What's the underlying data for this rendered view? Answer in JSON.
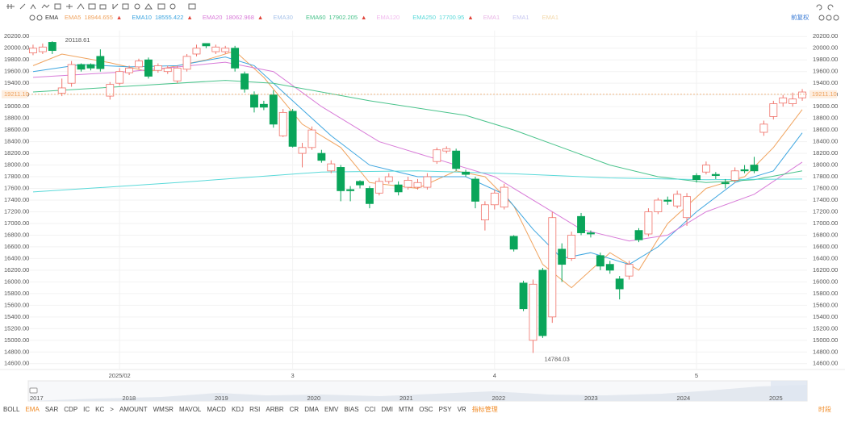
{
  "chart_data": {
    "type": "candlestick",
    "indicator": "EMA",
    "adjust_button": "前复权",
    "ylim": [
      14500,
      20300
    ],
    "yticks": [
      {
        "value": 20200,
        "label": "20200.00"
      },
      {
        "value": 20000,
        "label": "20000.00"
      },
      {
        "value": 19800,
        "label": "19800.00"
      },
      {
        "value": 19600,
        "label": "19600.00"
      },
      {
        "value": 19400,
        "label": "19400.00"
      },
      {
        "value": 19200,
        "label": "19200.00"
      },
      {
        "value": 19000,
        "label": "19000.00"
      },
      {
        "value": 18800,
        "label": "18800.00"
      },
      {
        "value": 18600,
        "label": "18600.00"
      },
      {
        "value": 18400,
        "label": "18400.00"
      },
      {
        "value": 18200,
        "label": "18200.00"
      },
      {
        "value": 18000,
        "label": "18000.00"
      },
      {
        "value": 17800,
        "label": "17800.00"
      },
      {
        "value": 17600,
        "label": "17600.00"
      },
      {
        "value": 17400,
        "label": "17400.00"
      },
      {
        "value": 17200,
        "label": "17200.00"
      },
      {
        "value": 17000,
        "label": "17000.00"
      },
      {
        "value": 16800,
        "label": "16800.00"
      },
      {
        "value": 16600,
        "label": "16600.00"
      },
      {
        "value": 16400,
        "label": "16400.00"
      },
      {
        "value": 16200,
        "label": "16200.00"
      },
      {
        "value": 16000,
        "label": "16000.00"
      },
      {
        "value": 15800,
        "label": "15800.00"
      },
      {
        "value": 15600,
        "label": "15600.00"
      },
      {
        "value": 15400,
        "label": "15400.00"
      },
      {
        "value": 15200,
        "label": "15200.00"
      },
      {
        "value": 15000,
        "label": "15000.00"
      },
      {
        "value": 14800,
        "label": "14800.00"
      },
      {
        "value": 14600,
        "label": "14600.00"
      }
    ],
    "grid": true,
    "up_color": "#f0736b",
    "down_color": "#0aa55a",
    "categories": [
      null,
      null,
      null,
      null,
      null,
      null,
      null,
      null,
      null,
      "2025/02",
      null,
      null,
      null,
      null,
      null,
      null,
      null,
      null,
      null,
      null,
      null,
      null,
      null,
      null,
      null,
      null,
      null,
      "3",
      null,
      null,
      null,
      null,
      null,
      null,
      null,
      null,
      null,
      null,
      null,
      null,
      null,
      null,
      null,
      null,
      null,
      null,
      null,
      null,
      "4",
      null,
      null,
      null,
      null,
      null,
      null,
      null,
      null,
      null,
      null,
      null,
      null,
      null,
      null,
      null,
      null,
      null,
      null,
      null,
      null,
      "5",
      null,
      null,
      null,
      null,
      null,
      null,
      null,
      null,
      null,
      null,
      null
    ],
    "open": [
      19920,
      19940,
      20100,
      19230,
      19400,
      19720,
      19720,
      19860,
      19180,
      19400,
      19580,
      19680,
      19800,
      19620,
      19600,
      19440,
      19640,
      19900,
      20080,
      19940,
      19940,
      20000,
      19560,
      19200,
      19040,
      19200,
      18500,
      18920,
      18200,
      18300,
      18200,
      17900,
      17960,
      17580,
      17720,
      17600,
      17520,
      17720,
      17660,
      17620,
      17620,
      17620,
      18060,
      18240,
      18240,
      17880,
      17760,
      17060,
      17320,
      17280,
      16780,
      15980,
      15000,
      16200,
      15400,
      16560,
      16400,
      17120,
      16840,
      16450,
      16300,
      16050,
      16100,
      16880,
      16820,
      17200,
      17400,
      17300,
      17100,
      17820,
      17880,
      17840,
      17700,
      17740,
      17920,
      18000,
      18560,
      18830,
      19060,
      19050,
      19150
    ],
    "close": [
      20000,
      20020,
      19960,
      19320,
      19720,
      19640,
      19660,
      19650,
      19380,
      19600,
      19660,
      19780,
      19520,
      19700,
      19660,
      19660,
      19860,
      20000,
      20040,
      20020,
      20000,
      19660,
      19300,
      18990,
      18990,
      18700,
      18900,
      18320,
      18300,
      18600,
      18080,
      18020,
      17560,
      17560,
      17660,
      17340,
      17720,
      17800,
      17540,
      17740,
      17700,
      17800,
      18260,
      18280,
      17940,
      17840,
      17380,
      17320,
      17520,
      17620,
      16560,
      15540,
      15960,
      15080,
      17100,
      16300,
      16800,
      16840,
      16820,
      16270,
      16200,
      15880,
      16300,
      16720,
      17200,
      17400,
      17380,
      17500,
      17460,
      17750,
      18000,
      17820,
      17680,
      17900,
      17900,
      17900,
      18700,
      19050,
      19150,
      19130,
      19250
    ],
    "high": [
      20060,
      20080,
      20118.61,
      19480,
      19780,
      19740,
      19740,
      19980,
      19420,
      19660,
      19700,
      19820,
      19840,
      19740,
      19700,
      19700,
      19900,
      20060,
      20080,
      20060,
      20040,
      20040,
      19600,
      19260,
      19100,
      19280,
      18960,
      18960,
      18380,
      18660,
      18260,
      18080,
      18000,
      17640,
      17740,
      17640,
      17780,
      17860,
      17720,
      17800,
      17760,
      17860,
      18300,
      18320,
      18280,
      17920,
      17800,
      17380,
      17580,
      17680,
      16800,
      16020,
      16040,
      16240,
      17200,
      16660,
      16860,
      17180,
      16880,
      16500,
      16360,
      16100,
      16360,
      16920,
      17260,
      17440,
      17460,
      17560,
      17520,
      17860,
      18060,
      17880,
      17760,
      17960,
      18000,
      18140,
      18760,
      19100,
      19200,
      19240,
      19300
    ],
    "low": [
      19880,
      19900,
      19900,
      19180,
      19340,
      19600,
      19620,
      19600,
      19120,
      19360,
      19540,
      19640,
      19480,
      19580,
      19560,
      19400,
      19600,
      19860,
      20000,
      19900,
      19900,
      19600,
      19240,
      18900,
      18940,
      18640,
      18480,
      18300,
      17960,
      18260,
      18040,
      17860,
      17380,
      17380,
      17600,
      17260,
      17480,
      17680,
      17480,
      17580,
      17580,
      17580,
      18020,
      18200,
      17900,
      17800,
      17260,
      16880,
      17240,
      17240,
      16520,
      15500,
      14784.03,
      15040,
      15300,
      16000,
      16360,
      16800,
      16760,
      16200,
      16140,
      15700,
      16040,
      16680,
      16780,
      17160,
      17320,
      17260,
      16960,
      17700,
      17840,
      17760,
      17600,
      17700,
      17860,
      17860,
      18500,
      18780,
      19000,
      19000,
      19100
    ],
    "series": [
      {
        "name": "EMA5",
        "color": "#f0a35e",
        "last": 18944.655,
        "trend": "▲",
        "x": [
          0,
          3,
          8,
          12,
          18,
          21,
          24,
          28,
          32,
          35,
          40,
          44,
          47,
          50,
          53,
          56,
          60,
          63,
          66,
          70,
          74,
          77,
          80
        ],
        "values": [
          19700,
          19900,
          19750,
          19600,
          19800,
          19950,
          19500,
          18700,
          18300,
          17700,
          17600,
          17900,
          17800,
          17300,
          16300,
          15900,
          16500,
          16200,
          17000,
          17600,
          17800,
          18300,
          18950
        ]
      },
      {
        "name": "EMA10",
        "color": "#3ea6e0",
        "last": 18555.422,
        "trend": "▲",
        "x": [
          0,
          5,
          10,
          15,
          20,
          23,
          27,
          31,
          35,
          40,
          45,
          49,
          52,
          55,
          58,
          62,
          65,
          69,
          73,
          77,
          80
        ],
        "values": [
          19600,
          19720,
          19680,
          19700,
          19850,
          19700,
          19100,
          18500,
          18000,
          17800,
          17800,
          17500,
          16900,
          16400,
          16500,
          16300,
          16600,
          17200,
          17700,
          17900,
          18550
        ]
      },
      {
        "name": "EMA20",
        "color": "#d87bd8",
        "last": 18062.968,
        "trend": "▲",
        "x": [
          0,
          10,
          20,
          25,
          30,
          36,
          42,
          48,
          53,
          57,
          62,
          66,
          70,
          75,
          80
        ],
        "values": [
          19500,
          19600,
          19760,
          19600,
          19000,
          18400,
          18100,
          17800,
          17300,
          16900,
          16700,
          16800,
          17200,
          17500,
          18050
        ]
      },
      {
        "name": "EMA60",
        "color": "#49c38b",
        "last": 17902.205,
        "trend": "▲",
        "x": [
          0,
          10,
          20,
          25,
          35,
          45,
          50,
          55,
          60,
          65,
          70,
          75,
          80
        ],
        "values": [
          19250,
          19350,
          19450,
          19400,
          19100,
          18850,
          18600,
          18300,
          18000,
          17800,
          17700,
          17750,
          17900
        ]
      },
      {
        "name": "EMA250",
        "color": "#59d9d9",
        "last": 17700.95,
        "trend": "▲",
        "x": [
          0,
          15,
          30,
          40,
          50,
          60,
          70,
          80
        ],
        "values": [
          17540,
          17700,
          17880,
          17900,
          17850,
          17780,
          17750,
          17760
        ]
      }
    ],
    "inactive_indicators": [
      {
        "name": "EMA30",
        "color": "#a9c4ea"
      },
      {
        "name": "EMA120",
        "color": "#f1b9ee"
      },
      {
        "name": "EMA1",
        "color": "#e9b6e6"
      },
      {
        "name": "EMA1",
        "color": "#c7c7f0"
      },
      {
        "name": "EMA1",
        "color": "#f2d7a8"
      }
    ],
    "price_line": {
      "value": 19211.1,
      "label": "19211.10",
      "color": "#f0a35e"
    },
    "high_annotation": {
      "value": 20118.61,
      "label": "20118.61"
    },
    "low_annotation": {
      "value": 14784.03,
      "label": "14784.03"
    },
    "navigator_years": [
      "2017",
      "2018",
      "2019",
      "2020",
      "2021",
      "2022",
      "2023",
      "2024",
      "2025"
    ],
    "indicator_tabs": [
      "BOLL",
      "EMA",
      "SAR",
      "CDP",
      "IC",
      "KC",
      ">",
      "AMOUNT",
      "WMSR",
      "MAVOL",
      "MACD",
      "KDJ",
      "RSI",
      "ARBR",
      "CR",
      "DMA",
      "EMV",
      "BIAS",
      "CCI",
      "DMI",
      "MTM",
      "OSC",
      "PSY",
      "VR"
    ],
    "manage_button": "指标管理",
    "period_button": "时段"
  }
}
